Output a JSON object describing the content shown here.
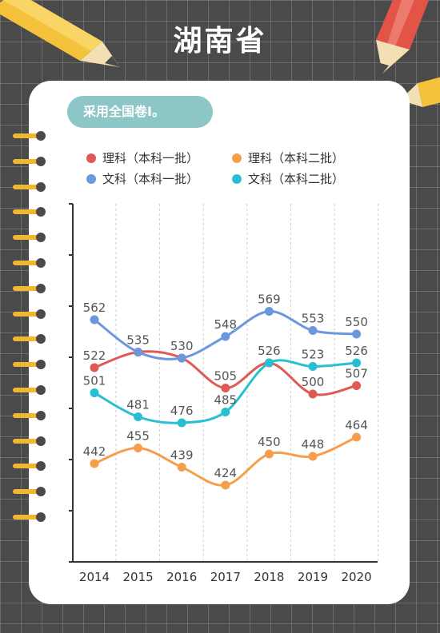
{
  "page": {
    "title": "湖南省",
    "badge": "采用全国卷Ⅰ。"
  },
  "colors": {
    "background": "#4a4a4a",
    "card": "#ffffff",
    "badge": "#8cc6c6",
    "pencil_body": "#f5c33b",
    "pencil_red": "#e25446",
    "spiral_ring": "#f0b72f"
  },
  "chart_data": {
    "type": "line",
    "categories": [
      "2014",
      "2015",
      "2016",
      "2017",
      "2018",
      "2019",
      "2020"
    ],
    "series": [
      {
        "name": "理科（本科一批）",
        "color": "#e05a55",
        "values": [
          522,
          535,
          530,
          505,
          526,
          500,
          507
        ],
        "labels": [
          "522",
          "",
          "",
          "505",
          "",
          "500",
          "507"
        ]
      },
      {
        "name": "理科（本科二批）",
        "color": "#f79e4c",
        "values": [
          442,
          455,
          439,
          424,
          450,
          448,
          464
        ],
        "labels": [
          "442",
          "455",
          "439",
          "424",
          "450",
          "448",
          "464"
        ]
      },
      {
        "name": "文科（本科一批）",
        "color": "#6b97dc",
        "values": [
          562,
          535,
          530,
          548,
          569,
          553,
          550
        ],
        "labels": [
          "562",
          "535",
          "530",
          "548",
          "569",
          "553",
          "550"
        ]
      },
      {
        "name": "文科（本科二批）",
        "color": "#27bfd1",
        "values": [
          501,
          481,
          476,
          485,
          526,
          523,
          526
        ],
        "labels": [
          "501",
          "481",
          "476",
          "485",
          "526",
          "523",
          "526"
        ]
      }
    ],
    "grid": "vertical dashed",
    "legend_position": "top"
  }
}
